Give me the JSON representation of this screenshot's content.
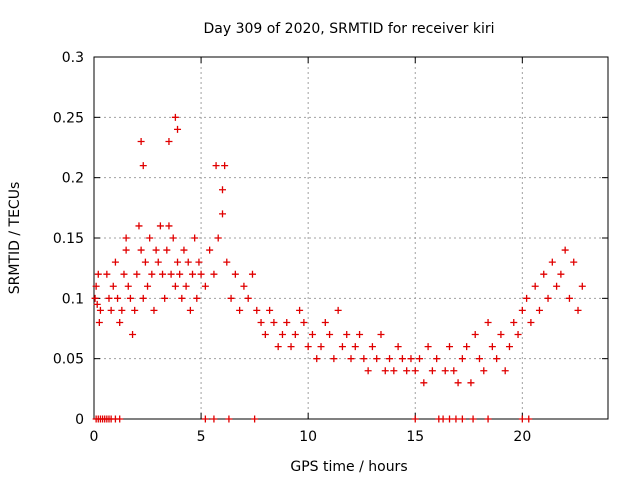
{
  "chart_data": {
    "type": "scatter",
    "title": "Day 309 of 2020, SRMTID for receiver kiri",
    "xlabel": "GPS time / hours",
    "ylabel": "SRMTID / TECUs",
    "xlim": [
      0,
      24
    ],
    "ylim": [
      0,
      0.3
    ],
    "x_ticks": [
      "0",
      "5",
      "10",
      "15",
      "20"
    ],
    "y_ticks": [
      "0",
      "0.05",
      "0.1",
      "0.15",
      "0.2",
      "0.25",
      "0.3"
    ],
    "grid": true,
    "legend": "none",
    "marker": "plus",
    "color": "#e00000",
    "series": [
      {
        "x": [
          0.05,
          0.1,
          0.15,
          0.2,
          0.25,
          0.3,
          0.6,
          0.7,
          0.8,
          0.9,
          1.0,
          1.1,
          1.2,
          1.3,
          1.4,
          1.5,
          1.6,
          1.7,
          1.8,
          1.9,
          2.0,
          2.1,
          2.2,
          2.3,
          2.4,
          2.5,
          2.6,
          2.7,
          2.8,
          2.9,
          3.0,
          3.1,
          3.2,
          3.3,
          3.4,
          3.5,
          3.6,
          3.7,
          3.8,
          3.9,
          4.0,
          4.1,
          4.2,
          4.3,
          4.4,
          4.5,
          4.6,
          4.7,
          4.8,
          4.9,
          5.0,
          5.2,
          5.4,
          5.6,
          5.8,
          6.0,
          6.2,
          6.4,
          6.6,
          6.8,
          7.0,
          7.2,
          7.4,
          7.6,
          7.8,
          8.0,
          8.2,
          8.4,
          8.6,
          8.8,
          9.0,
          9.2,
          9.4,
          9.6,
          9.8,
          10.0,
          10.2,
          10.4,
          10.6,
          10.8,
          11.0,
          11.2,
          11.4,
          11.6,
          11.8,
          12.0,
          12.2,
          12.4,
          12.6,
          12.8,
          13.0,
          13.2,
          13.4,
          13.6,
          13.8,
          14.0,
          14.2,
          14.4,
          14.6,
          14.8,
          15.0,
          15.2,
          15.4,
          15.6,
          15.8,
          16.0,
          16.4,
          16.6,
          16.8,
          17.0,
          17.2,
          17.4,
          17.6,
          17.8,
          18.0,
          18.2,
          18.4,
          18.6,
          18.8,
          19.0,
          19.2,
          19.4,
          19.6,
          19.8,
          20.0,
          20.2,
          20.4,
          20.6,
          20.8,
          21.0,
          21.2,
          21.4,
          21.6,
          21.8,
          22.0,
          22.2,
          22.4,
          22.6,
          22.8,
          3.5,
          3.9,
          3.8,
          2.2,
          2.3,
          1.5,
          5.7,
          6.0,
          6.1
        ],
        "y": [
          0.1,
          0.11,
          0.095,
          0.12,
          0.08,
          0.09,
          0.12,
          0.1,
          0.09,
          0.11,
          0.13,
          0.1,
          0.08,
          0.09,
          0.12,
          0.14,
          0.11,
          0.1,
          0.07,
          0.09,
          0.12,
          0.16,
          0.14,
          0.1,
          0.13,
          0.11,
          0.15,
          0.12,
          0.09,
          0.14,
          0.13,
          0.16,
          0.12,
          0.1,
          0.14,
          0.16,
          0.12,
          0.15,
          0.11,
          0.13,
          0.12,
          0.1,
          0.14,
          0.11,
          0.13,
          0.09,
          0.12,
          0.15,
          0.1,
          0.13,
          0.12,
          0.11,
          0.14,
          0.12,
          0.15,
          0.17,
          0.13,
          0.1,
          0.12,
          0.09,
          0.11,
          0.1,
          0.12,
          0.09,
          0.08,
          0.07,
          0.09,
          0.08,
          0.06,
          0.07,
          0.08,
          0.06,
          0.07,
          0.09,
          0.08,
          0.06,
          0.07,
          0.05,
          0.06,
          0.08,
          0.07,
          0.05,
          0.09,
          0.06,
          0.07,
          0.05,
          0.06,
          0.07,
          0.05,
          0.04,
          0.06,
          0.05,
          0.07,
          0.04,
          0.05,
          0.04,
          0.06,
          0.05,
          0.04,
          0.05,
          0.04,
          0.05,
          0.03,
          0.06,
          0.04,
          0.05,
          0.04,
          0.06,
          0.04,
          0.03,
          0.05,
          0.06,
          0.03,
          0.07,
          0.05,
          0.04,
          0.08,
          0.06,
          0.05,
          0.07,
          0.04,
          0.06,
          0.08,
          0.07,
          0.09,
          0.1,
          0.08,
          0.11,
          0.09,
          0.12,
          0.1,
          0.13,
          0.11,
          0.12,
          0.14,
          0.1,
          0.13,
          0.09,
          0.11,
          0.23,
          0.24,
          0.25,
          0.23,
          0.21,
          0.15,
          0.21,
          0.19,
          0.21
        ]
      },
      {
        "x": [
          0.1,
          0.2,
          0.3,
          0.4,
          0.5,
          0.6,
          0.7,
          0.8,
          1.0,
          1.2,
          5.2,
          5.6,
          6.3,
          7.5,
          15.0,
          16.1,
          16.3,
          16.6,
          16.9,
          17.2,
          17.7,
          18.4,
          20.0,
          20.3
        ],
        "y": [
          0,
          0,
          0,
          0,
          0,
          0,
          0,
          0,
          0,
          0,
          0,
          0,
          0,
          0,
          0,
          0,
          0,
          0,
          0,
          0,
          0,
          0,
          0,
          0
        ]
      }
    ]
  }
}
